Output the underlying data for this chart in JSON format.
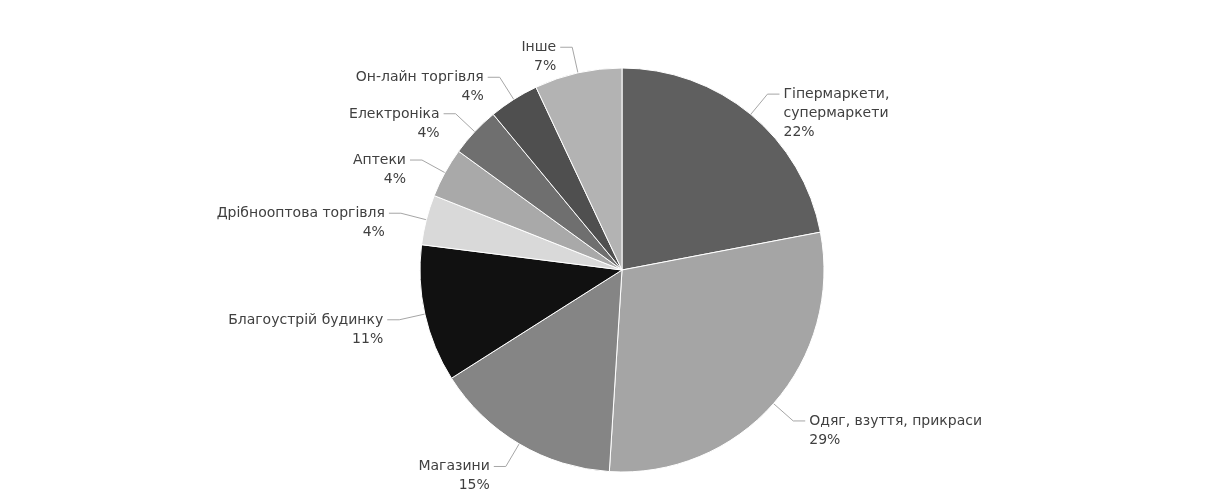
{
  "chart_data": {
    "type": "pie",
    "categories": [
      "Гіпермаркети,\nсупермаркети",
      "Одяг, взуття, прикраси",
      "Магазини",
      "Благоустрій будинку",
      "Дрібнооптова торгівля",
      "Аптеки",
      "Електроніка",
      "Он-лайн торгівля",
      "Інше"
    ],
    "values": [
      22,
      29,
      15,
      11,
      4,
      4,
      4,
      4,
      7
    ],
    "value_labels": [
      "22%",
      "29%",
      "15%",
      "11%",
      "4%",
      "4%",
      "4%",
      "4%",
      "7%"
    ],
    "colors": [
      "#5f5f5f",
      "#a5a5a5",
      "#858585",
      "#111111",
      "#d9d9d9",
      "#a9a9a9",
      "#6f6f6f",
      "#4f4f4f",
      "#b3b3b3"
    ]
  }
}
